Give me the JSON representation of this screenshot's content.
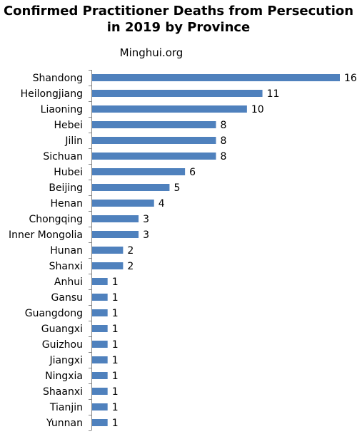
{
  "chart_data": {
    "type": "bar",
    "orientation": "horizontal",
    "title": "Confirmed Practitioner Deaths from Persecution in 2019 by Province",
    "source": "Minghui.org",
    "categories": [
      "Shandong",
      "Heilongjiang",
      "Liaoning",
      "Hebei",
      "Jilin",
      "Sichuan",
      "Hubei",
      "Beijing",
      "Henan",
      "Chongqing",
      "Inner Mongolia",
      "Hunan",
      "Shanxi",
      "Anhui",
      "Gansu",
      "Guangdong",
      "Guangxi",
      "Guizhou",
      "Jiangxi",
      "Ningxia",
      "Shaanxi",
      "Tianjin",
      "Yunnan"
    ],
    "values": [
      16,
      11,
      10,
      8,
      8,
      8,
      6,
      5,
      4,
      3,
      3,
      2,
      2,
      1,
      1,
      1,
      1,
      1,
      1,
      1,
      1,
      1,
      1
    ],
    "xlim": [
      0,
      16
    ],
    "bar_color": "#4f81bd",
    "axis_color": "#868686",
    "data_labels": true,
    "grid": false,
    "legend": "none"
  }
}
